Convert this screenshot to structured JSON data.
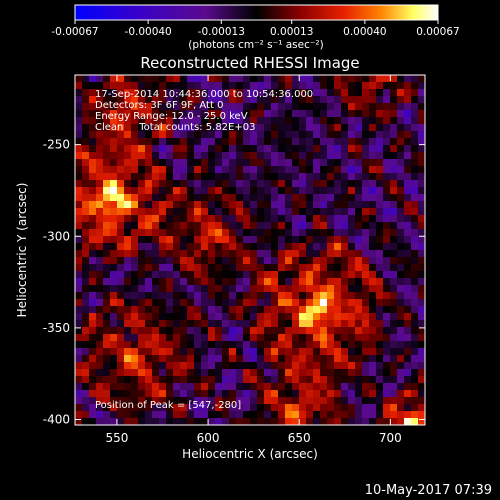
{
  "chart_data": {
    "type": "heatmap",
    "title": "Reconstructed RHESSI Image",
    "colorbar": {
      "ticks": [
        "-0.00067",
        "-0.00040",
        "-0.00013",
        "0.00013",
        "0.00040",
        "0.00067"
      ],
      "range": [
        -0.00067,
        0.00067
      ],
      "unit_label": "(photons cm⁻² s⁻¹ asec⁻²)",
      "colors": [
        "#0000ff",
        "#3a00c8",
        "#5a0a8c",
        "#000000",
        "#8c0000",
        "#e62000",
        "#ff8000",
        "#ffff60",
        "#ffffff"
      ]
    },
    "annotations": [
      "17-Sep-2014 10:44:36.000 to 10:54:36.000",
      "Detectors: 3F 6F 9F, Att 0",
      "Energy Range: 12.0 - 25.0 keV",
      "Clean     Total counts: 5.82E+03",
      "Position of Peak = [547,-280]"
    ],
    "xlabel": "Heliocentric X (arcsec)",
    "ylabel": "Heliocentric Y (arcsec)",
    "xlim": [
      527,
      719
    ],
    "ylim": [
      -403,
      -212
    ],
    "xticks": [
      "550",
      "600",
      "650",
      "700"
    ],
    "yticks": [
      "-250",
      "-300",
      "-350",
      "-400"
    ],
    "xtick_values": [
      550,
      600,
      650,
      700
    ],
    "ytick_values": [
      -250,
      -300,
      -350,
      -400
    ],
    "peak": {
      "x": 547,
      "y": -280
    },
    "footer_date": "10-May-2017 07:39"
  }
}
